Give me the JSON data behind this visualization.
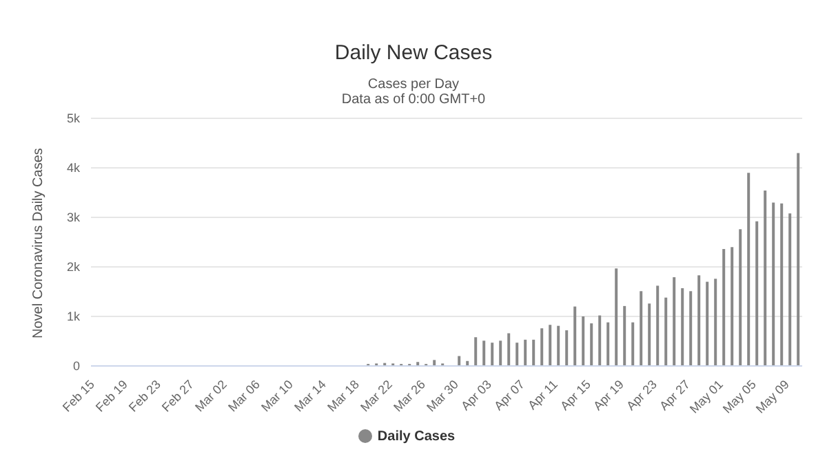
{
  "chart_data": {
    "type": "bar",
    "title": "Daily New Cases",
    "subtitle": "Cases per Day",
    "annotations": [
      "Data as of 0:00 GMT+0"
    ],
    "ylabel": "Novel Coronavirus Daily Cases",
    "categories": [
      "Feb 15",
      null,
      null,
      null,
      "Feb 19",
      null,
      null,
      null,
      "Feb 23",
      null,
      null,
      null,
      "Feb 27",
      null,
      null,
      null,
      "Mar 02",
      null,
      null,
      null,
      "Mar 06",
      null,
      null,
      null,
      "Mar 10",
      null,
      null,
      null,
      "Mar 14",
      null,
      null,
      null,
      "Mar 18",
      null,
      null,
      null,
      "Mar 22",
      null,
      null,
      null,
      "Mar 26",
      null,
      null,
      null,
      "Mar 30",
      null,
      null,
      null,
      "Apr 03",
      null,
      null,
      null,
      "Apr 07",
      null,
      null,
      null,
      "Apr 11",
      null,
      null,
      null,
      "Apr 15",
      null,
      null,
      null,
      "Apr 19",
      null,
      null,
      null,
      "Apr 23",
      null,
      null,
      null,
      "Apr 27",
      null,
      null,
      null,
      "May 01",
      null,
      null,
      null,
      "May 05",
      null,
      null,
      null,
      "May 09",
      null
    ],
    "series": [
      {
        "name": "Daily Cases",
        "color": "#888888",
        "values": [
          0,
          0,
          0,
          0,
          0,
          0,
          0,
          0,
          0,
          0,
          0,
          0,
          0,
          0,
          0,
          0,
          0,
          0,
          0,
          0,
          0,
          0,
          0,
          0,
          0,
          0,
          0,
          0,
          0,
          0,
          0,
          0,
          0,
          40,
          50,
          60,
          50,
          40,
          40,
          80,
          40,
          120,
          50,
          10,
          200,
          100,
          580,
          510,
          470,
          510,
          660,
          470,
          530,
          530,
          760,
          830,
          810,
          720,
          1200,
          1000,
          860,
          1020,
          880,
          1970,
          1210,
          880,
          1510,
          1260,
          1620,
          1380,
          1790,
          1570,
          1510,
          1830,
          1700,
          1760,
          2360,
          2400,
          2760,
          3900,
          2920,
          3540,
          3300,
          3280,
          3080,
          4300
        ]
      }
    ],
    "ylim": [
      0,
      5000
    ],
    "yticks": [
      0,
      {
        "value": 1000,
        "label": "1k"
      },
      {
        "value": 2000,
        "label": "2k"
      },
      {
        "value": 3000,
        "label": "3k"
      },
      {
        "value": 4000,
        "label": "4k"
      },
      {
        "value": 5000,
        "label": "5k"
      }
    ],
    "grid": "y",
    "legend": "bottom"
  }
}
